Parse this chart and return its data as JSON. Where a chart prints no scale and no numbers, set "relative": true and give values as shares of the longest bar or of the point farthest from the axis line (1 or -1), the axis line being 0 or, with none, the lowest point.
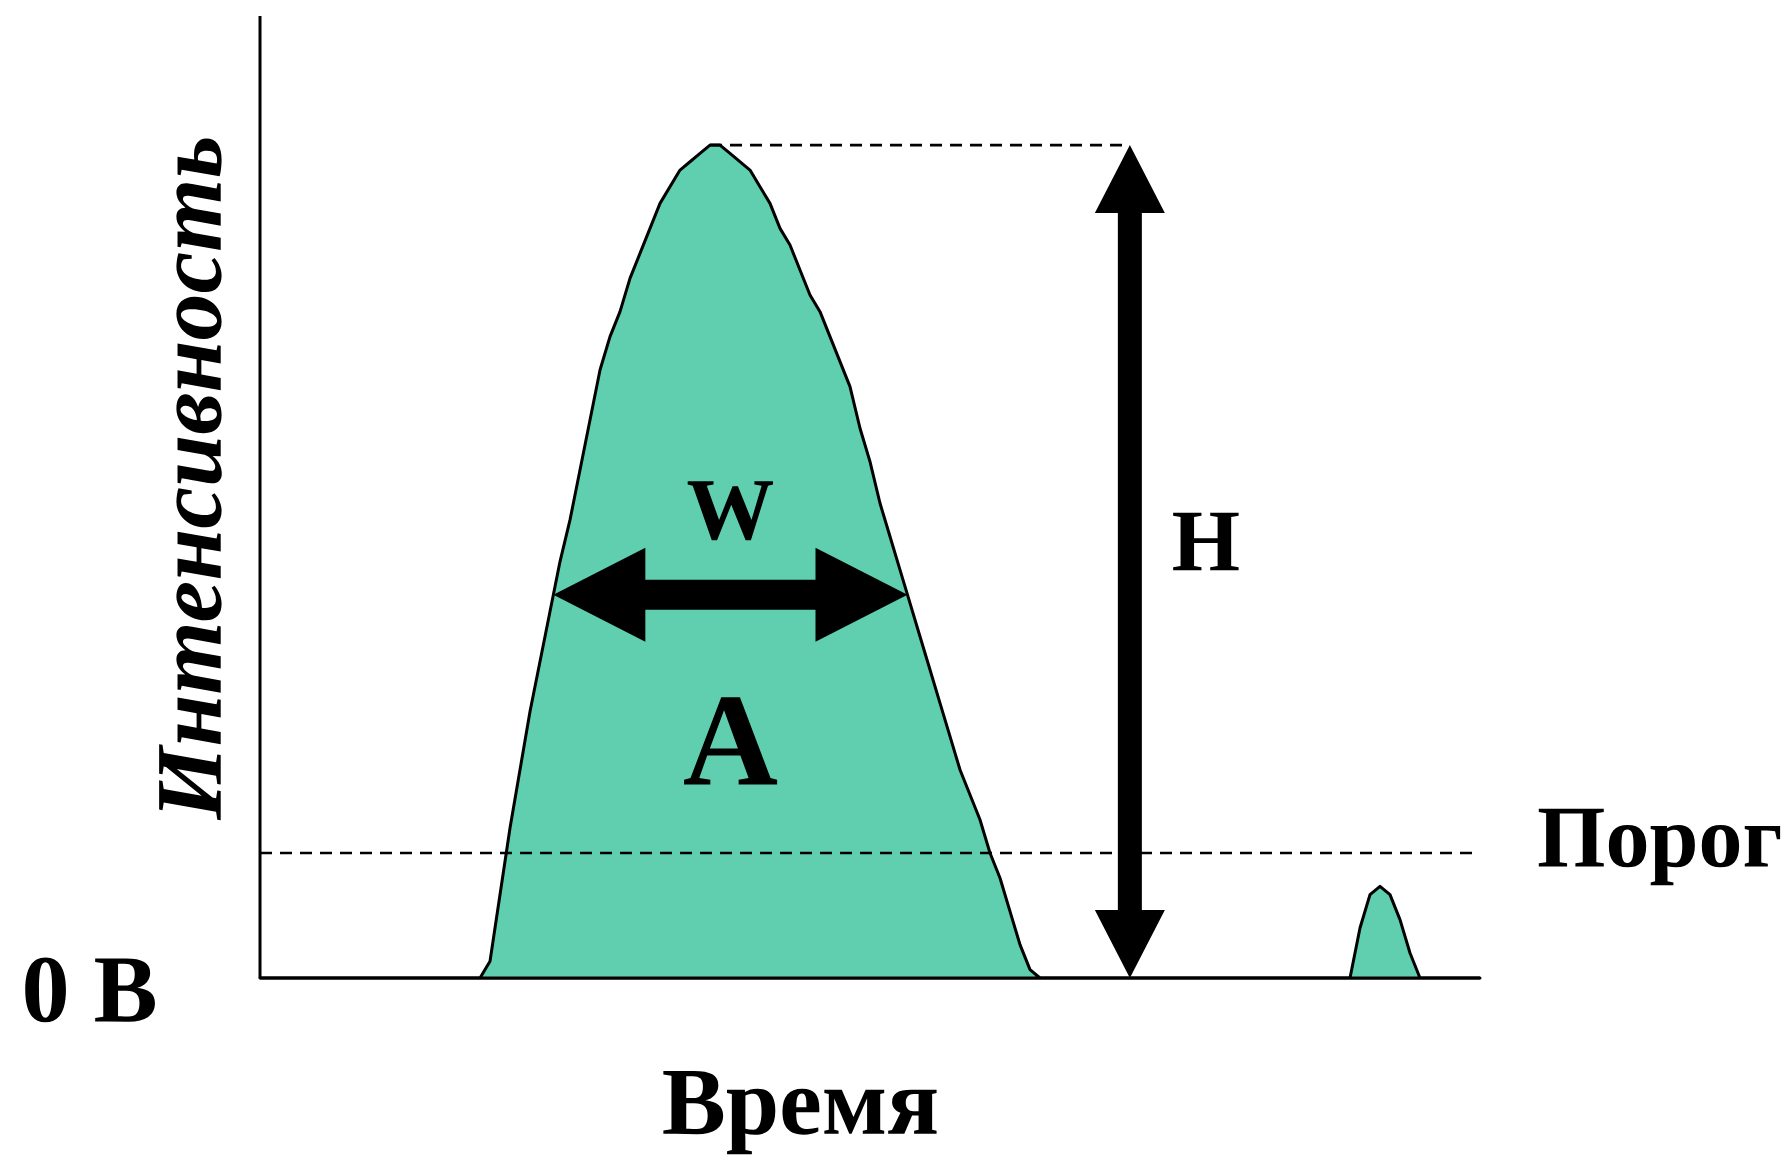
{
  "chart_data": {
    "type": "area",
    "relative": true,
    "xlabel": "Время",
    "ylabel": "Интенсивность",
    "color": "#5fcfb0",
    "categories": [
      null,
      null,
      null,
      null,
      null,
      null,
      null,
      null,
      null,
      null,
      null,
      null,
      null,
      null,
      null,
      null,
      null,
      null,
      null,
      null,
      null,
      null,
      null,
      null,
      null,
      null,
      null,
      null,
      null,
      null,
      null,
      null,
      null,
      null,
      null,
      null,
      null,
      null,
      null,
      null,
      null,
      null,
      null,
      null,
      null,
      null,
      null,
      null,
      null,
      null,
      null,
      null,
      null,
      null,
      null,
      null,
      null,
      null,
      null,
      null,
      null,
      null,
      null,
      null,
      null,
      null,
      null,
      null,
      null,
      null,
      null,
      null,
      null,
      null,
      null,
      null,
      null,
      null,
      null,
      null,
      null,
      null,
      null,
      null,
      null,
      null,
      null,
      null,
      null,
      null,
      null,
      null,
      null,
      null,
      null,
      null,
      null,
      null,
      null,
      null,
      null,
      null,
      null,
      null,
      null,
      null,
      null,
      null,
      null,
      null,
      null,
      null,
      null,
      null,
      null,
      null,
      null,
      null,
      null,
      null,
      null,
      null,
      null
    ],
    "values": [
      0,
      0,
      0,
      0,
      0,
      0,
      0,
      0,
      0,
      0,
      0,
      0,
      0,
      0,
      0,
      0,
      0,
      0,
      0,
      0,
      0,
      0,
      0,
      0.02,
      0.1,
      0.18,
      0.25,
      0.32,
      0.38,
      0.44,
      0.5,
      0.55,
      0.61,
      0.67,
      0.73,
      0.77,
      0.8,
      0.84,
      0.87,
      0.9,
      0.93,
      0.95,
      0.97,
      0.98,
      0.99,
      1,
      1,
      0.99,
      0.98,
      0.97,
      0.95,
      0.93,
      0.9,
      0.88,
      0.85,
      0.82,
      0.8,
      0.77,
      0.74,
      0.71,
      0.66,
      0.62,
      0.57,
      0.53,
      0.49,
      0.45,
      0.41,
      0.37,
      0.33,
      0.29,
      0.25,
      0.22,
      0.19,
      0.15,
      0.12,
      0.08,
      0.04,
      0.01,
      0,
      0,
      0,
      0,
      0,
      0,
      0,
      0,
      0,
      0,
      0,
      0,
      0,
      0,
      0,
      0,
      0,
      0,
      0,
      0,
      0,
      0,
      0,
      0,
      0,
      0,
      0,
      0,
      0,
      0,
      0,
      0,
      0.06,
      0.1,
      0.11,
      0.1,
      0.07,
      0.03,
      0,
      0,
      0,
      0,
      0,
      0,
      0
    ],
    "ref_lines": [
      {
        "axis": "y",
        "value": 0.15,
        "label": "Порог",
        "line_style": "dashed"
      }
    ],
    "annotations": [
      "W",
      "H",
      "A",
      "0 В"
    ]
  }
}
